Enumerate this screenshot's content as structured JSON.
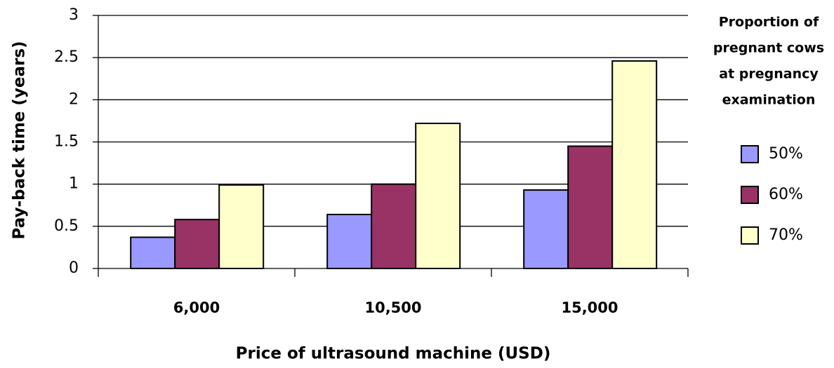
{
  "chart_data": {
    "type": "bar",
    "x_label": "Price of ultrasound machine (USD)",
    "y_label": "Pay-back time (years)",
    "legend_title": [
      "Proportion of",
      "pregnant cows",
      "at pregnancy",
      "examination"
    ],
    "legend_position": "right",
    "categories": [
      "6,000",
      "10,500",
      "15,000"
    ],
    "series": [
      {
        "name": "50%",
        "color": "#9999ff",
        "values": [
          0.37,
          0.64,
          0.93
        ]
      },
      {
        "name": "60%",
        "color": "#993366",
        "values": [
          0.58,
          1.0,
          1.45
        ]
      },
      {
        "name": "70%",
        "color": "#ffffcc",
        "values": [
          0.99,
          1.72,
          2.46
        ]
      }
    ],
    "ylim": [
      0,
      3
    ],
    "yticks": [
      0,
      0.5,
      1,
      1.5,
      2,
      2.5,
      3
    ],
    "grid": true
  }
}
